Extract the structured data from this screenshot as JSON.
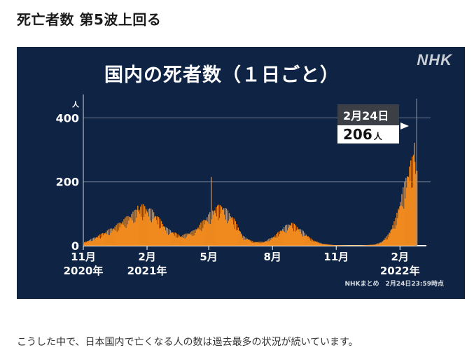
{
  "headline": "死亡者数 第5波上回る",
  "caption": "こうした中で、日本国内で亡くなる人の数は過去最多の状況が続いています。",
  "brand": "NHK",
  "colors": {
    "panel": "#0f2444",
    "bars": "#f08a1e",
    "grid": "#6b7890",
    "text": "#ffffff"
  },
  "chart_data": {
    "type": "bar",
    "title": "国内の死者数（１日ごと）",
    "unit": "人",
    "ylim": [
      0,
      460
    ],
    "yticks": [
      0,
      200,
      400
    ],
    "x_labels": [
      {
        "label": "11月",
        "year": "2020年",
        "day": 0
      },
      {
        "label": "2月",
        "year": "2021年",
        "day": 92
      },
      {
        "label": "5月",
        "year": "",
        "day": 181
      },
      {
        "label": "8月",
        "year": "",
        "day": 273
      },
      {
        "label": "11月",
        "year": "",
        "day": 365
      },
      {
        "label": "2月",
        "year": "2022年",
        "day": 457
      }
    ],
    "total_days": 481,
    "series_key_points": [
      {
        "day": 0,
        "value": 8
      },
      {
        "day": 20,
        "value": 25
      },
      {
        "day": 45,
        "value": 50
      },
      {
        "day": 70,
        "value": 85
      },
      {
        "day": 85,
        "value": 105
      },
      {
        "day": 100,
        "value": 90
      },
      {
        "day": 120,
        "value": 45
      },
      {
        "day": 140,
        "value": 25
      },
      {
        "day": 160,
        "value": 40
      },
      {
        "day": 175,
        "value": 70
      },
      {
        "day": 190,
        "value": 100
      },
      {
        "day": 200,
        "value": 105
      },
      {
        "day": 215,
        "value": 75
      },
      {
        "day": 230,
        "value": 25
      },
      {
        "day": 245,
        "value": 10
      },
      {
        "day": 260,
        "value": 10
      },
      {
        "day": 275,
        "value": 25
      },
      {
        "day": 290,
        "value": 50
      },
      {
        "day": 300,
        "value": 60
      },
      {
        "day": 315,
        "value": 40
      },
      {
        "day": 330,
        "value": 15
      },
      {
        "day": 345,
        "value": 5
      },
      {
        "day": 360,
        "value": 2
      },
      {
        "day": 380,
        "value": 1
      },
      {
        "day": 400,
        "value": 1
      },
      {
        "day": 420,
        "value": 3
      },
      {
        "day": 430,
        "value": 10
      },
      {
        "day": 440,
        "value": 30
      },
      {
        "day": 450,
        "value": 70
      },
      {
        "day": 460,
        "value": 140
      },
      {
        "day": 470,
        "value": 210
      },
      {
        "day": 476,
        "value": 230
      },
      {
        "day": 481,
        "value": 206
      }
    ],
    "spikes": [
      {
        "day": 78,
        "value": 125
      },
      {
        "day": 184,
        "value": 215
      },
      {
        "day": 477,
        "value": 322
      }
    ],
    "annotation": {
      "date": "2月24日",
      "value": 206,
      "unit": "人"
    },
    "source": "NHKまとめ　2月24日23:59時点"
  }
}
